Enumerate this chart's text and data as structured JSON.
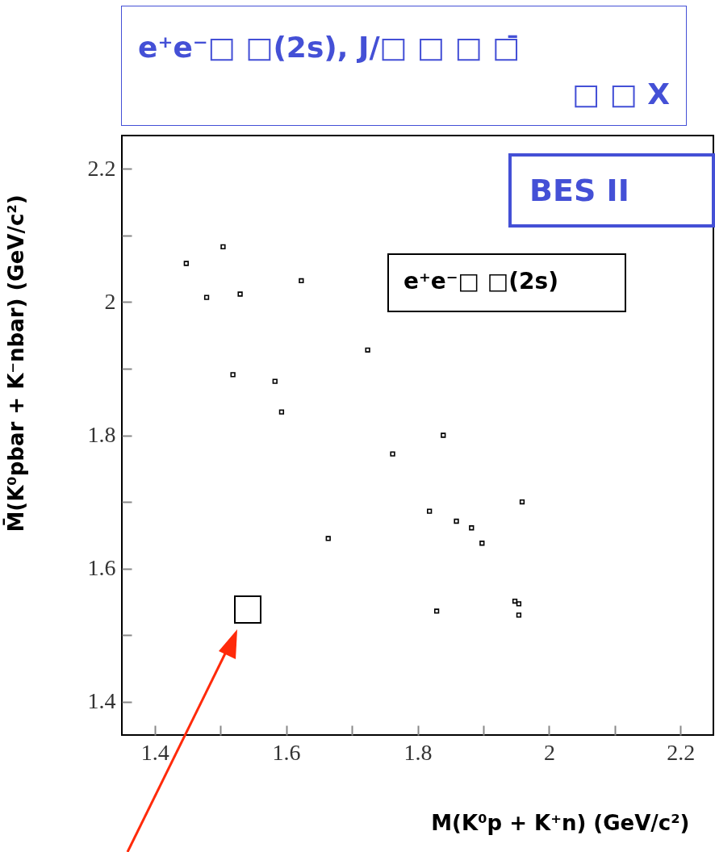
{
  "chart_data": {
    "type": "scatter",
    "title": "e⁺e⁻□ □(2s), J/□ □ □ □̄\n□ □ X",
    "xlabel": "M(K⁰p + K⁺n) (GeV/c²)",
    "ylabel": "M̄(K⁰pbar + K⁻nbar) (GeV/c²)",
    "annotations": [
      "BES II",
      "e⁺e⁻□ □(2s)"
    ],
    "x": [
      1.448,
      1.504,
      1.479,
      1.53,
      1.623,
      1.519,
      1.583,
      1.593,
      1.724,
      1.839,
      1.762,
      1.818,
      1.859,
      1.882,
      1.898,
      1.959,
      1.664,
      1.829,
      1.948,
      1.954,
      1.954
    ],
    "values": [
      2.058,
      2.083,
      2.007,
      2.012,
      2.032,
      1.891,
      1.881,
      1.835,
      1.928,
      1.8,
      1.772,
      1.686,
      1.671,
      1.661,
      1.638,
      1.7,
      1.645,
      1.536,
      1.551,
      1.547,
      1.53
    ],
    "color": "#000000",
    "marker": "square",
    "grid": false,
    "xlim": [
      1.35,
      2.25
    ],
    "ylim": [
      1.35,
      2.25
    ],
    "xticks": [
      1.4,
      {
        "value": 1.5,
        "label": null
      },
      1.6,
      {
        "value": 1.7,
        "label": null
      },
      1.8,
      {
        "value": 1.9,
        "label": null
      },
      2,
      {
        "value": 2.1,
        "label": null
      },
      2.2
    ],
    "yticks": [
      1.4,
      {
        "value": 1.5,
        "label": null
      },
      1.6,
      {
        "value": 1.7,
        "label": null
      },
      1.8,
      {
        "value": 1.9,
        "label": null
      },
      2,
      {
        "value": 2.1,
        "label": null
      },
      2.2
    ]
  }
}
